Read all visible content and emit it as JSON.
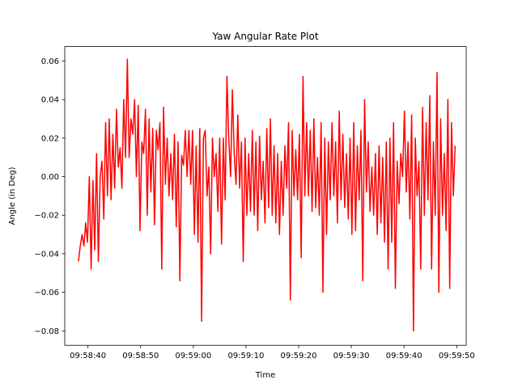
{
  "chart_data": {
    "type": "line",
    "title": "Yaw Angular Rate Plot",
    "xlabel": "Time",
    "ylabel": "Angle (in Deg)",
    "x_ticks": [
      "09:58:40",
      "09:58:50",
      "09:59:00",
      "09:59:10",
      "09:59:20",
      "09:59:30",
      "09:59:40",
      "09:59:50"
    ],
    "y_ticks": [
      "0.06",
      "0.04",
      "0.02",
      "0.00",
      "−0.02",
      "−0.04",
      "−0.06",
      "−0.08"
    ],
    "y_tick_values": [
      0.06,
      0.04,
      0.02,
      0.0,
      -0.02,
      -0.04,
      -0.06,
      -0.08
    ],
    "x_tick_values": [
      "09:58:40",
      "09:58:50",
      "09:59:00",
      "09:59:10",
      "09:59:20",
      "09:59:30",
      "09:59:40",
      "09:59:50"
    ],
    "xlim": [
      "09:58:35.6",
      "09:59:51.8"
    ],
    "ylim": [
      -0.0875,
      0.0675
    ],
    "x_start": "09:58:38.2",
    "x_end": "09:59:49.7",
    "grid": false,
    "series": [
      {
        "color": "#ff0000",
        "values": [
          -0.044,
          -0.036,
          -0.03,
          -0.036,
          -0.024,
          -0.034,
          -0.0,
          -0.048,
          -0.002,
          -0.038,
          0.012,
          -0.044,
          0.0,
          0.008,
          -0.022,
          0.028,
          -0.01,
          0.03,
          -0.012,
          0.022,
          -0.006,
          0.035,
          0.005,
          0.015,
          -0.006,
          0.04,
          0.01,
          0.061,
          0.01,
          0.03,
          0.022,
          0.04,
          0.0,
          0.037,
          -0.028,
          0.018,
          0.012,
          0.035,
          -0.02,
          0.03,
          -0.008,
          0.025,
          -0.025,
          0.024,
          0.014,
          0.028,
          -0.048,
          0.036,
          -0.004,
          0.02,
          -0.01,
          0.012,
          -0.012,
          0.022,
          -0.026,
          0.018,
          -0.054,
          0.011,
          0.006,
          0.024,
          0.0,
          0.024,
          -0.004,
          0.024,
          -0.03,
          0.016,
          -0.034,
          0.025,
          -0.075,
          0.02,
          0.024,
          -0.01,
          0.005,
          -0.04,
          0.02,
          0.0,
          0.012,
          -0.018,
          0.02,
          -0.035,
          0.02,
          -0.012,
          0.052,
          0.02,
          0.0,
          0.045,
          0.012,
          -0.004,
          0.032,
          -0.006,
          0.018,
          -0.044,
          0.02,
          -0.02,
          0.012,
          -0.018,
          0.024,
          -0.02,
          0.018,
          -0.028,
          0.021,
          -0.012,
          0.008,
          -0.024,
          0.025,
          -0.016,
          0.03,
          -0.02,
          0.016,
          -0.024,
          0.012,
          -0.03,
          0.008,
          -0.02,
          0.016,
          -0.006,
          0.028,
          -0.064,
          0.024,
          -0.01,
          0.014,
          -0.012,
          0.022,
          -0.042,
          0.052,
          -0.01,
          0.028,
          -0.01,
          0.024,
          -0.018,
          0.03,
          -0.016,
          0.01,
          -0.02,
          0.028,
          -0.06,
          0.02,
          -0.03,
          0.018,
          -0.012,
          0.028,
          -0.01,
          0.018,
          -0.024,
          0.034,
          -0.012,
          0.022,
          -0.016,
          0.012,
          -0.022,
          0.02,
          -0.03,
          0.028,
          -0.028,
          0.016,
          -0.012,
          0.024,
          -0.054,
          0.04,
          -0.008,
          0.018,
          -0.018,
          0.005,
          -0.02,
          0.012,
          -0.03,
          0.016,
          -0.024,
          0.01,
          -0.034,
          0.018,
          -0.048,
          0.02,
          -0.034,
          0.028,
          -0.058,
          0.008,
          -0.014,
          0.012,
          0.0,
          0.034,
          -0.008,
          0.018,
          -0.022,
          0.032,
          -0.08,
          0.02,
          -0.01,
          0.008,
          -0.048,
          0.036,
          -0.02,
          0.028,
          -0.012,
          0.042,
          -0.048,
          0.018,
          -0.02,
          0.054,
          -0.06,
          0.03,
          -0.02,
          0.012,
          -0.028,
          0.04,
          -0.058,
          0.028,
          -0.01,
          0.016
        ]
      }
    ]
  }
}
